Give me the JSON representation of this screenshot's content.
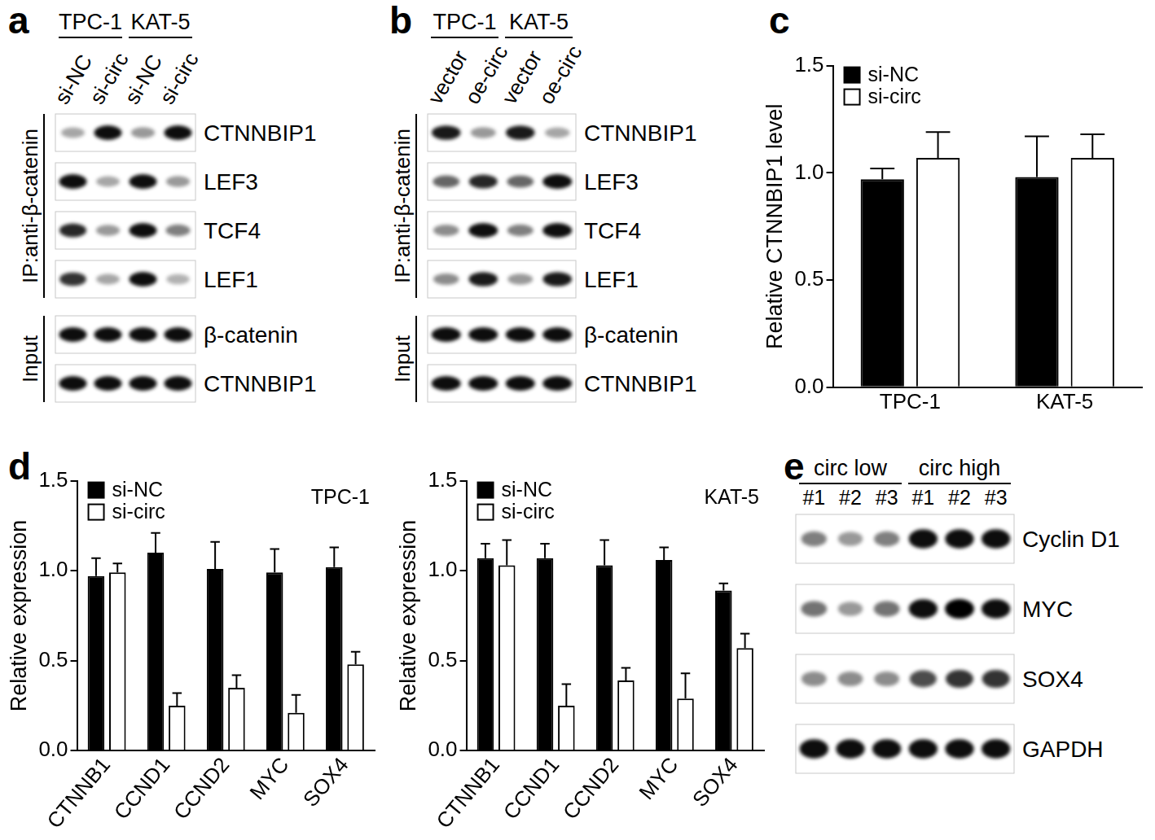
{
  "panels": [
    "a",
    "b",
    "c",
    "d",
    "e"
  ],
  "blots": [
    {
      "groups": [
        {
          "name": "TPC-1",
          "lanes": [
            "si-NC",
            "si-circ"
          ]
        },
        {
          "name": "KAT-5",
          "lanes": [
            "si-NC",
            "si-circ"
          ]
        }
      ],
      "sections": [
        {
          "name": "IP:anti-β-catenin",
          "rows": [
            {
              "name": "CTNNBIP1",
              "intensity": [
                0.35,
                0.95,
                0.4,
                0.95
              ]
            },
            {
              "name": "LEF3",
              "intensity": [
                0.95,
                0.35,
                0.95,
                0.4
              ]
            },
            {
              "name": "TCF4",
              "intensity": [
                0.85,
                0.4,
                0.95,
                0.5
              ]
            },
            {
              "name": "LEF1",
              "intensity": [
                0.8,
                0.35,
                0.95,
                0.3
              ]
            }
          ]
        },
        {
          "name": "Input",
          "rows": [
            {
              "name": "β-catenin",
              "intensity": [
                0.95,
                0.95,
                0.95,
                0.95
              ]
            },
            {
              "name": "CTNNBIP1",
              "intensity": [
                0.95,
                0.95,
                0.95,
                0.95
              ]
            }
          ]
        }
      ]
    },
    {
      "groups": [
        {
          "name": "TPC-1",
          "lanes": [
            "vector",
            "oe-circ"
          ]
        },
        {
          "name": "KAT-5",
          "lanes": [
            "vector",
            "oe-circ"
          ]
        }
      ],
      "sections": [
        {
          "name": "IP:anti-β-catenin",
          "rows": [
            {
              "name": "CTNNBIP1",
              "intensity": [
                0.9,
                0.4,
                0.9,
                0.35
              ]
            },
            {
              "name": "LEF3",
              "intensity": [
                0.6,
                0.85,
                0.6,
                0.95
              ]
            },
            {
              "name": "TCF4",
              "intensity": [
                0.45,
                0.95,
                0.5,
                0.95
              ]
            },
            {
              "name": "LEF1",
              "intensity": [
                0.45,
                0.9,
                0.4,
                0.9
              ]
            }
          ]
        },
        {
          "name": "Input",
          "rows": [
            {
              "name": "β-catenin",
              "intensity": [
                0.95,
                0.95,
                0.95,
                0.95
              ]
            },
            {
              "name": "CTNNBIP1",
              "intensity": [
                0.95,
                0.95,
                0.95,
                0.95
              ]
            }
          ]
        }
      ]
    },
    {
      "groups": [
        {
          "name": "circ low",
          "lanes": [
            "#1",
            "#2",
            "#3"
          ]
        },
        {
          "name": "circ high",
          "lanes": [
            "#1",
            "#2",
            "#3"
          ]
        }
      ],
      "sections": [
        {
          "rows": [
            {
              "name": "Cyclin D1",
              "intensity": [
                0.5,
                0.4,
                0.5,
                0.95,
                0.95,
                0.95
              ]
            },
            {
              "name": "MYC",
              "intensity": [
                0.55,
                0.4,
                0.55,
                0.95,
                1.0,
                0.95
              ]
            },
            {
              "name": "SOX4",
              "intensity": [
                0.45,
                0.45,
                0.45,
                0.7,
                0.8,
                0.8
              ]
            },
            {
              "name": "GAPDH",
              "intensity": [
                0.95,
                0.95,
                0.95,
                0.95,
                0.95,
                0.95
              ]
            }
          ]
        }
      ]
    }
  ],
  "chart_data": [
    {
      "type": "bar",
      "ylabel": "Relative CTNNBIP1 level",
      "categories": [
        "TPC-1",
        "KAT-5"
      ],
      "series": [
        {
          "name": "si-NC",
          "color": "#000000",
          "values": [
            0.97,
            0.98
          ],
          "errors": [
            0.05,
            0.19
          ]
        },
        {
          "name": "si-circ",
          "color": "#ffffff",
          "values": [
            1.07,
            1.07
          ],
          "errors": [
            0.12,
            0.11
          ]
        }
      ],
      "ylim": [
        0,
        1.5
      ],
      "yticks": [
        {
          "value": 0,
          "label": "0.0"
        },
        {
          "value": 0.5,
          "label": "0.5"
        },
        {
          "value": 1,
          "label": "1.0"
        },
        {
          "value": 1.5,
          "label": "1.5"
        }
      ],
      "grid": false,
      "legend": "top-left"
    },
    {
      "type": "bar",
      "title": "TPC-1",
      "ylabel": "Relative expression",
      "categories": [
        "CTNNB1",
        "CCND1",
        "CCND2",
        "MYC",
        "SOX4"
      ],
      "series": [
        {
          "name": "si-NC",
          "color": "#000000",
          "values": [
            0.97,
            1.1,
            1.01,
            0.99,
            1.02
          ],
          "errors": [
            0.1,
            0.11,
            0.15,
            0.13,
            0.11
          ]
        },
        {
          "name": "si-circ",
          "color": "#ffffff",
          "values": [
            0.99,
            0.25,
            0.35,
            0.21,
            0.48
          ],
          "errors": [
            0.05,
            0.07,
            0.07,
            0.1,
            0.07
          ]
        }
      ],
      "ylim": [
        0,
        1.5
      ],
      "yticks": [
        {
          "value": 0,
          "label": "0.0"
        },
        {
          "value": 0.5,
          "label": "0.5"
        },
        {
          "value": 1,
          "label": "1.0"
        },
        {
          "value": 1.5,
          "label": "1.5"
        }
      ],
      "grid": false,
      "legend": "top-left"
    },
    {
      "type": "bar",
      "title": "KAT-5",
      "ylabel": "Relative expression",
      "categories": [
        "CTNNB1",
        "CCND1",
        "CCND2",
        "MYC",
        "SOX4"
      ],
      "series": [
        {
          "name": "si-NC",
          "color": "#000000",
          "values": [
            1.07,
            1.07,
            1.03,
            1.06,
            0.89
          ],
          "errors": [
            0.08,
            0.08,
            0.14,
            0.07,
            0.04
          ]
        },
        {
          "name": "si-circ",
          "color": "#ffffff",
          "values": [
            1.03,
            0.25,
            0.39,
            0.29,
            0.57
          ],
          "errors": [
            0.14,
            0.12,
            0.07,
            0.14,
            0.08
          ]
        }
      ],
      "ylim": [
        0,
        1.5
      ],
      "yticks": [
        {
          "value": 0,
          "label": "0.0"
        },
        {
          "value": 0.5,
          "label": "0.5"
        },
        {
          "value": 1,
          "label": "1.0"
        },
        {
          "value": 1.5,
          "label": "1.5"
        }
      ],
      "grid": false,
      "legend": "top-left"
    }
  ]
}
